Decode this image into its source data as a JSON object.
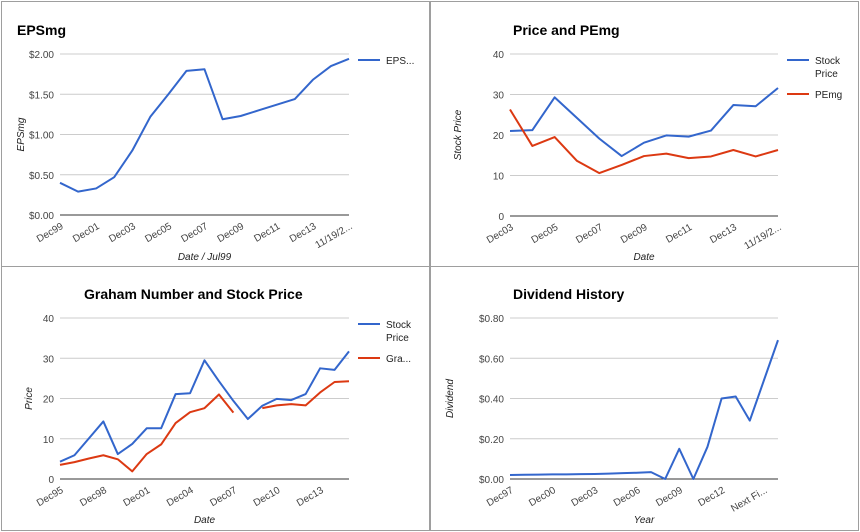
{
  "chart_data": [
    {
      "type": "line",
      "title": "EPSmg",
      "xlabel": "Date / Jul99",
      "ylabel": "EPSmg",
      "ylim": [
        0,
        2
      ],
      "yticks": [
        "$0.00",
        "$0.50",
        "$1.00",
        "$1.50",
        "$2.00"
      ],
      "yticks_values": [
        0,
        0.5,
        1,
        1.5,
        2
      ],
      "xtick_labels": [
        "Dec99",
        "Dec01",
        "Dec03",
        "Dec05",
        "Dec07",
        "Dec09",
        "Dec11",
        "Dec13",
        "11/19/2..."
      ],
      "series": [
        {
          "name": "EPS...",
          "color": "#3366cc",
          "values": [
            0.4,
            0.29,
            0.33,
            0.47,
            0.8,
            1.22,
            1.5,
            1.79,
            1.81,
            1.19,
            1.23,
            1.3,
            1.37,
            1.44,
            1.68,
            1.85,
            1.94
          ]
        }
      ]
    },
    {
      "type": "line",
      "title": "Price and PEmg",
      "xlabel": "Date",
      "ylabel": "Stock Price",
      "ylim": [
        0,
        40
      ],
      "yticks": [
        "0",
        "10",
        "20",
        "30",
        "40"
      ],
      "yticks_values": [
        0,
        10,
        20,
        30,
        40
      ],
      "xtick_labels": [
        "Dec03",
        "Dec05",
        "Dec07",
        "Dec09",
        "Dec11",
        "Dec13",
        "11/19/2..."
      ],
      "series": [
        {
          "name": "Stock Price",
          "legend_lines": [
            "Stock",
            "Price"
          ],
          "color": "#3366cc",
          "values": [
            21,
            21.2,
            29.3,
            24.2,
            19.1,
            14.8,
            18.1,
            19.9,
            19.6,
            21.1,
            27.4,
            27.1,
            31.6
          ]
        },
        {
          "name": "PEmg",
          "legend_lines": [
            "PEmg"
          ],
          "color": "#dc3912",
          "values": [
            26.3,
            17.3,
            19.5,
            13.6,
            10.6,
            12.6,
            14.8,
            15.4,
            14.3,
            14.7,
            16.3,
            14.7,
            16.3
          ]
        }
      ]
    },
    {
      "type": "line",
      "title": "Graham Number and Stock Price",
      "xlabel": "Date",
      "ylabel": "Price",
      "ylim": [
        0,
        40
      ],
      "yticks": [
        "0",
        "10",
        "20",
        "30",
        "40"
      ],
      "yticks_values": [
        0,
        10,
        20,
        30,
        40
      ],
      "xtick_labels": [
        "Dec95",
        "Dec98",
        "Dec01",
        "Dec04",
        "Dec07",
        "Dec10",
        "Dec13"
      ],
      "series": [
        {
          "name": "Stock Price",
          "legend_lines": [
            "Stock",
            "Price"
          ],
          "color": "#3366cc",
          "values": [
            4.3,
            5.9,
            10.1,
            14.3,
            6.2,
            8.7,
            12.6,
            12.6,
            21.1,
            21.3,
            29.5,
            24.3,
            19.4,
            14.9,
            18.2,
            19.9,
            19.6,
            21.1,
            27.5,
            27.1,
            31.7
          ]
        },
        {
          "name": "Gra...",
          "legend_lines": [
            "Gra..."
          ],
          "color": "#dc3912",
          "values": [
            3.5,
            4.2,
            5.1,
            5.9,
            4.9,
            1.9,
            6.2,
            8.6,
            13.9,
            16.6,
            17.6,
            21.0,
            16.5,
            null,
            17.6,
            18.3,
            18.6,
            18.3,
            21.5,
            24.1,
            24.3
          ]
        }
      ]
    },
    {
      "type": "line",
      "title": "Dividend History",
      "xlabel": "Year",
      "ylabel": "Dividend",
      "ylim": [
        0,
        0.8
      ],
      "yticks": [
        "$0.00",
        "$0.20",
        "$0.40",
        "$0.60",
        "$0.80"
      ],
      "yticks_values": [
        0,
        0.2,
        0.4,
        0.6,
        0.8
      ],
      "xtick_labels": [
        "Dec97",
        "Dec00",
        "Dec03",
        "Dec06",
        "Dec09",
        "Dec12",
        "Next Fi..."
      ],
      "series": [
        {
          "name": "Dividend",
          "color": "#3366cc",
          "values": [
            0.02,
            0.021,
            0.022,
            0.023,
            0.023,
            0.024,
            0.025,
            0.027,
            0.029,
            0.031,
            0.034,
            0.0,
            0.15,
            0.0,
            0.16,
            0.4,
            0.41,
            0.29,
            0.49,
            0.69
          ]
        }
      ]
    }
  ]
}
